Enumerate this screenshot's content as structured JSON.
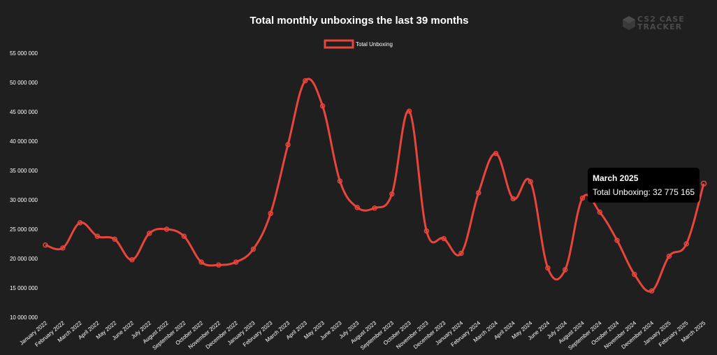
{
  "brand": {
    "line1": "CS2 CASE",
    "line2": "TRACKER"
  },
  "tooltip": {
    "title": "March 2025",
    "label": "Total Unboxing: 32 775 165"
  },
  "colors": {
    "background": "#1f1f1f",
    "line": "#e8453c",
    "text": "#ffffff",
    "logo": "#4a4a4a"
  },
  "chart_data": {
    "type": "line",
    "title": "Total monthly unboxings the last 39 months",
    "xlabel": "",
    "ylabel": "",
    "ylim": [
      10000000,
      55000000
    ],
    "yticks": [
      10000000,
      15000000,
      20000000,
      25000000,
      30000000,
      35000000,
      40000000,
      45000000,
      50000000,
      55000000
    ],
    "ytick_labels": [
      "10 000 000",
      "15 000 000",
      "20 000 000",
      "25 000 000",
      "30 000 000",
      "35 000 000",
      "40 000 000",
      "45 000 000",
      "50 000 000",
      "55 000 000"
    ],
    "legend_position": "top-center",
    "grid": false,
    "categories": [
      "January 2022",
      "February 2022",
      "March 2022",
      "April 2022",
      "May 2022",
      "June 2022",
      "July 2022",
      "August 2022",
      "September 2022",
      "October 2022",
      "November 2022",
      "December 2022",
      "January 2023",
      "February 2023",
      "March 2023",
      "April 2023",
      "May 2023",
      "June 2023",
      "July 2023",
      "August 2023",
      "September 2023",
      "October 2023",
      "November 2023",
      "December 2023",
      "January 2024",
      "February 2024",
      "March 2024",
      "April 2024",
      "May 2024",
      "June 2024",
      "July 2024",
      "August 2024",
      "September 2024",
      "October 2024",
      "November 2024",
      "December 2024",
      "January 2025",
      "February 2025",
      "March 2025"
    ],
    "series": [
      {
        "name": "Total Unboxing",
        "values": [
          22300000,
          21800000,
          26100000,
          23800000,
          23300000,
          19800000,
          24300000,
          25000000,
          23800000,
          19400000,
          18900000,
          19400000,
          21600000,
          27700000,
          39400000,
          50300000,
          46000000,
          33200000,
          28700000,
          28600000,
          31000000,
          45100000,
          24700000,
          23400000,
          20900000,
          31200000,
          37900000,
          30200000,
          33100000,
          18400000,
          18100000,
          30300000,
          27900000,
          23100000,
          17300000,
          14500000,
          20400000,
          22500000,
          32775165
        ]
      }
    ]
  }
}
